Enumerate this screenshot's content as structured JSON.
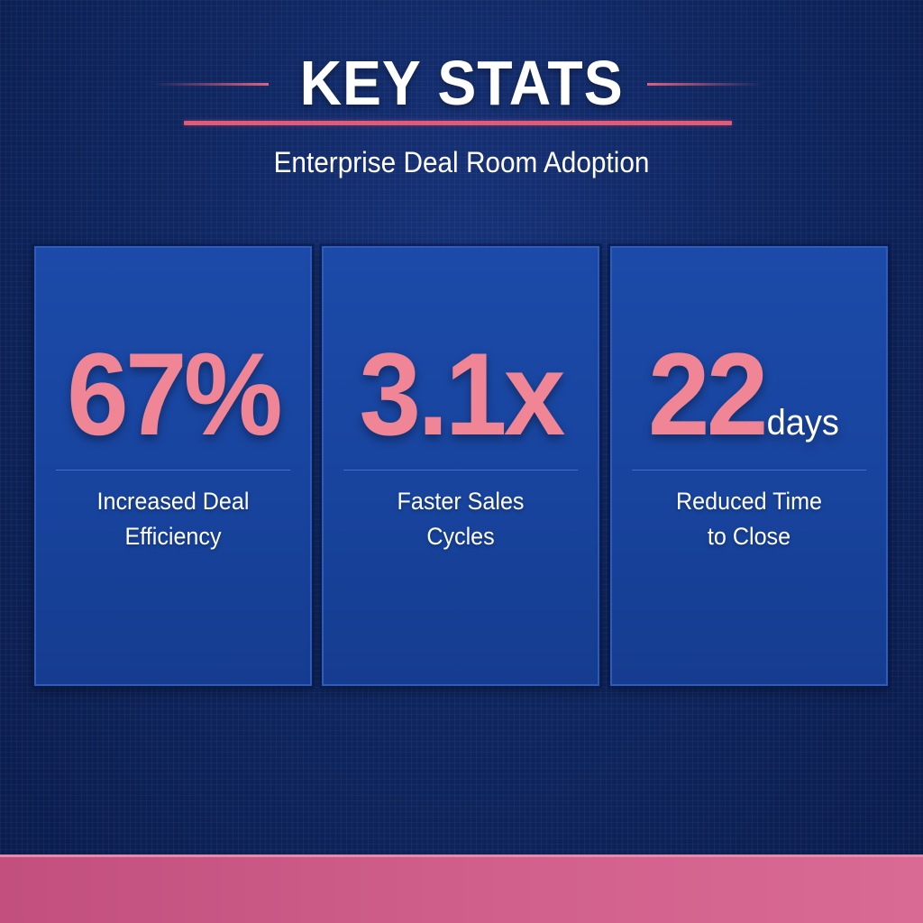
{
  "header": {
    "title": "KEY STATS",
    "subtitle": "Enterprise Deal Room Adoption"
  },
  "stats": [
    {
      "value": "67%",
      "unit": "",
      "label_line1": "Increased Deal",
      "label_line2": "Efficiency"
    },
    {
      "value": "3.1x",
      "unit": "",
      "label_line1": "Faster Sales",
      "label_line2": "Cycles"
    },
    {
      "value": "22",
      "unit": "days",
      "label_line1": "Reduced Time",
      "label_line2": "to Close"
    }
  ],
  "colors": {
    "background": "#0f2660",
    "card": "#1b4aa8",
    "accent_pink": "#ef8595",
    "title_line": "#e15a78",
    "bottom_bar": "#d2628d",
    "text": "#ffffff"
  }
}
